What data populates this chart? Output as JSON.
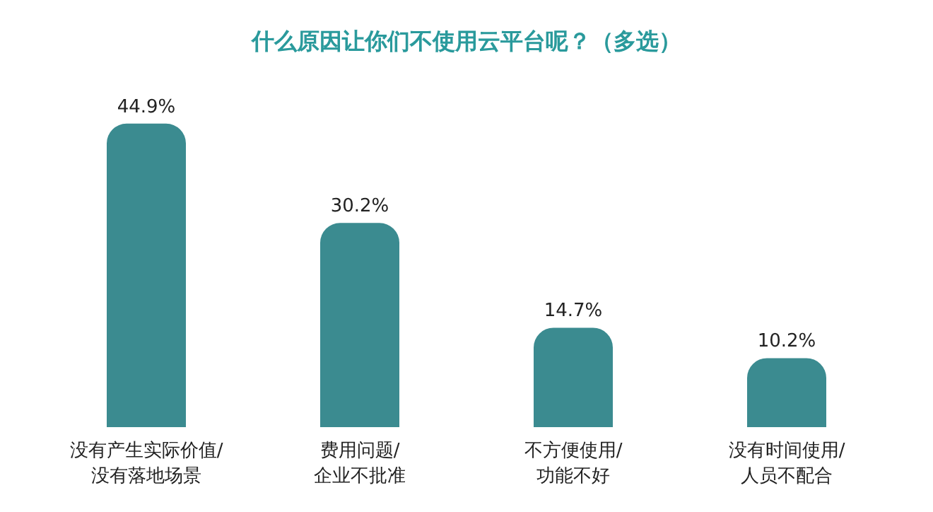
{
  "chart_data": {
    "type": "bar",
    "title": "什么原因让你们不使用云平台呢？（多选）",
    "categories": [
      "没有产生实际价值/没有落地场景",
      "费用问题/企业不批准",
      "不方便使用/功能不好",
      "没有时间使用/人员不配合"
    ],
    "values": [
      44.9,
      30.2,
      14.7,
      10.2
    ],
    "value_labels": [
      "44.9%",
      "30.2%",
      "14.7%",
      "10.2%"
    ],
    "color": "#3b8b90",
    "grid": false
  }
}
